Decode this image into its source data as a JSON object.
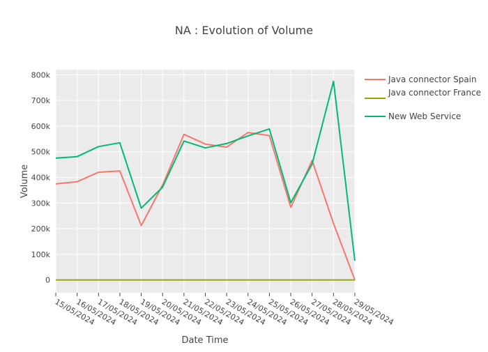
{
  "chart_data": {
    "type": "line",
    "title": "NA : Evolution of Volume",
    "xlabel": "Date Time",
    "ylabel": "Volume",
    "ylim": [
      -50000,
      820000
    ],
    "yticks": [
      {
        "value": 0,
        "label": "0"
      },
      {
        "value": 100000,
        "label": "100k"
      },
      {
        "value": 200000,
        "label": "200k"
      },
      {
        "value": 300000,
        "label": "300k"
      },
      {
        "value": 400000,
        "label": "400k"
      },
      {
        "value": 500000,
        "label": "500k"
      },
      {
        "value": 600000,
        "label": "600k"
      },
      {
        "value": 700000,
        "label": "700k"
      },
      {
        "value": 800000,
        "label": "800k"
      }
    ],
    "categories": [
      "15/05/2024",
      "16/05/2024",
      "17/05/2024",
      "18/05/2024",
      "19/05/2024",
      "20/05/2024",
      "21/05/2024",
      "22/05/2024",
      "23/05/2024",
      "24/05/2024",
      "25/05/2024",
      "26/05/2024",
      "27/05/2024",
      "28/05/2024",
      "29/05/2024"
    ],
    "grid": true,
    "legend_position": "top-right",
    "series": [
      {
        "name": "Java connector Spain",
        "color": "#F8766D",
        "values": [
          375000,
          383000,
          420000,
          425000,
          212000,
          370000,
          568000,
          530000,
          518000,
          575000,
          563000,
          283000,
          466000,
          220000,
          0
        ]
      },
      {
        "name": "Java connector France",
        "color": "#9BA300",
        "values": [
          0,
          0,
          0,
          0,
          0,
          0,
          0,
          0,
          0,
          0,
          0,
          0,
          0,
          0,
          0
        ]
      },
      {
        "name": "New Web Service",
        "color": "#00BA73",
        "values": [
          475000,
          481000,
          520000,
          535000,
          280000,
          362000,
          542000,
          515000,
          532000,
          562000,
          589000,
          301000,
          452000,
          775000,
          75000
        ]
      }
    ]
  }
}
